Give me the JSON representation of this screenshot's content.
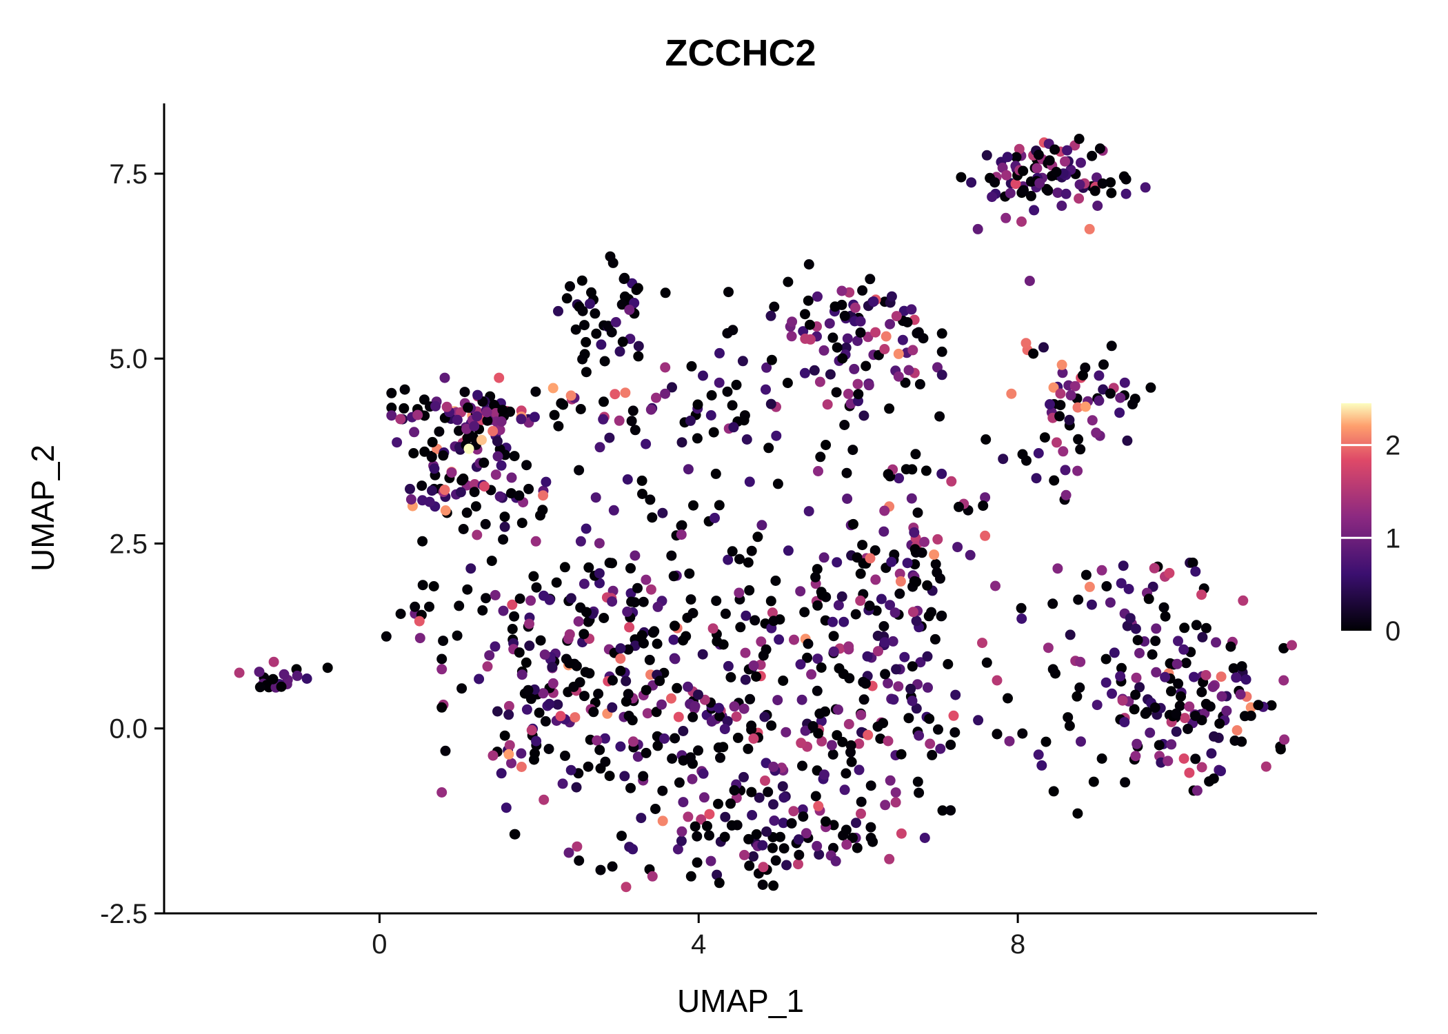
{
  "title": "ZCCHC2",
  "chart_data": {
    "type": "scatter",
    "title": "ZCCHC2",
    "xlabel": "UMAP_1",
    "ylabel": "UMAP_2",
    "xlim": [
      -2.7,
      11.75
    ],
    "ylim": [
      -2.5,
      8.45
    ],
    "xticks": [
      0,
      4,
      8
    ],
    "xtick_labels": [
      "0",
      "4",
      "8"
    ],
    "yticks": [
      -2.5,
      0.0,
      2.5,
      5.0,
      7.5
    ],
    "ytick_labels": [
      "-2.5",
      "0.0",
      "2.5",
      "5.0",
      "7.5"
    ],
    "grid": false,
    "legend": {
      "position": "right",
      "ticks": [
        0,
        1,
        2
      ],
      "tick_labels": [
        "0",
        "1",
        "2"
      ],
      "vmax": 2.45
    },
    "colorscale": {
      "name": "magma",
      "stops": [
        [
          0,
          "#000004"
        ],
        [
          0.25,
          "#3B0F70"
        ],
        [
          0.5,
          "#8C2981"
        ],
        [
          0.75,
          "#DE4968"
        ],
        [
          0.9,
          "#FE9F6D"
        ],
        [
          1,
          "#FCFDBF"
        ]
      ]
    },
    "point_radius_px": 7.5,
    "seed": 7,
    "value_buckets": [
      [
        0,
        0.04
      ],
      [
        0.35,
        0.9
      ],
      [
        0.9,
        1.6
      ],
      [
        1.6,
        2.2
      ],
      [
        2.2,
        2.45
      ]
    ],
    "clusters": [
      {
        "name": "left-isolate",
        "cx": -1.35,
        "cy": 0.68,
        "sx": 0.2,
        "sy": 0.1,
        "n": 18,
        "mix": [
          0.45,
          0.35,
          0.2,
          0,
          0
        ]
      },
      {
        "name": "upperleft-arc",
        "cx": 1.25,
        "cy": 4.3,
        "sx": 0.5,
        "sy": 0.2,
        "n": 70,
        "mix": [
          0.33,
          0.3,
          0.27,
          0.08,
          0.02
        ]
      },
      {
        "name": "upperleft-west",
        "cx": 0.85,
        "cy": 3.5,
        "sx": 0.3,
        "sy": 0.45,
        "n": 55,
        "mix": [
          0.4,
          0.28,
          0.24,
          0.08,
          0
        ]
      },
      {
        "name": "upperleft-core",
        "cx": 1.6,
        "cy": 3.3,
        "sx": 0.45,
        "sy": 0.4,
        "n": 35,
        "mix": [
          0.48,
          0.3,
          0.2,
          0.02,
          0
        ]
      },
      {
        "name": "band-mid",
        "cx": 3.1,
        "cy": 4.3,
        "sx": 0.85,
        "sy": 0.22,
        "n": 32,
        "mix": [
          0.42,
          0.3,
          0.22,
          0.06,
          0
        ]
      },
      {
        "name": "topmid",
        "cx": 2.88,
        "cy": 5.72,
        "sx": 0.32,
        "sy": 0.3,
        "n": 40,
        "mix": [
          0.6,
          0.28,
          0.12,
          0,
          0
        ]
      },
      {
        "name": "topmid-sparse",
        "cx": 3.2,
        "cy": 5.0,
        "sx": 0.7,
        "sy": 0.12,
        "n": 6,
        "mix": [
          0.85,
          0.15,
          0,
          0,
          0
        ]
      },
      {
        "name": "top-center-sparse",
        "cx": 4.6,
        "cy": 5.25,
        "sx": 0.45,
        "sy": 0.3,
        "n": 6,
        "mix": [
          0.7,
          0.3,
          0,
          0,
          0
        ]
      },
      {
        "name": "small-mid",
        "cx": 4.45,
        "cy": 4.3,
        "sx": 0.25,
        "sy": 0.18,
        "n": 12,
        "mix": [
          0.4,
          0.3,
          0.3,
          0,
          0
        ]
      },
      {
        "name": "midright-dense",
        "cx": 5.95,
        "cy": 5.35,
        "sx": 0.5,
        "sy": 0.42,
        "n": 85,
        "mix": [
          0.35,
          0.32,
          0.28,
          0.05,
          0
        ]
      },
      {
        "name": "mid-band-sparse",
        "cx": 6.0,
        "cy": 3.9,
        "sx": 1.1,
        "sy": 0.55,
        "n": 45,
        "mix": [
          0.55,
          0.25,
          0.2,
          0,
          0
        ]
      },
      {
        "name": "topright",
        "cx": 8.5,
        "cy": 7.55,
        "sx": 0.5,
        "sy": 0.22,
        "n": 75,
        "mix": [
          0.4,
          0.3,
          0.22,
          0.08,
          0
        ]
      },
      {
        "name": "topright-lower",
        "cx": 7.95,
        "cy": 7.3,
        "sx": 0.3,
        "sy": 0.22,
        "n": 14,
        "mix": [
          0.5,
          0.3,
          0.2,
          0,
          0
        ]
      },
      {
        "name": "rightmid",
        "cx": 8.8,
        "cy": 4.55,
        "sx": 0.4,
        "sy": 0.3,
        "n": 45,
        "mix": [
          0.38,
          0.28,
          0.26,
          0.08,
          0
        ]
      },
      {
        "name": "rightmid-lower",
        "cx": 8.5,
        "cy": 3.7,
        "sx": 0.2,
        "sy": 0.3,
        "n": 14,
        "mix": [
          0.45,
          0.3,
          0.25,
          0,
          0
        ]
      },
      {
        "name": "blob-left",
        "cx": 2.1,
        "cy": 0.55,
        "sx": 0.6,
        "sy": 0.9,
        "n": 110,
        "mix": [
          0.42,
          0.3,
          0.23,
          0.05,
          0
        ]
      },
      {
        "name": "blob-midleft",
        "cx": 3.6,
        "cy": 0.3,
        "sx": 0.8,
        "sy": 0.9,
        "n": 115,
        "mix": [
          0.5,
          0.27,
          0.2,
          0.03,
          0
        ]
      },
      {
        "name": "blob-mid",
        "cx": 5.0,
        "cy": 0.2,
        "sx": 0.8,
        "sy": 1.0,
        "n": 125,
        "mix": [
          0.5,
          0.27,
          0.2,
          0.03,
          0
        ]
      },
      {
        "name": "blob-right",
        "cx": 6.2,
        "cy": 0.5,
        "sx": 0.7,
        "sy": 0.9,
        "n": 100,
        "mix": [
          0.48,
          0.27,
          0.22,
          0.03,
          0
        ]
      },
      {
        "name": "blob-bottom",
        "cx": 4.7,
        "cy": -1.5,
        "sx": 1.0,
        "sy": 0.35,
        "n": 65,
        "mix": [
          0.5,
          0.28,
          0.19,
          0.03,
          0
        ]
      },
      {
        "name": "blob-topright",
        "cx": 5.9,
        "cy": 1.9,
        "sx": 0.8,
        "sy": 0.5,
        "n": 60,
        "mix": [
          0.45,
          0.3,
          0.22,
          0.03,
          0
        ]
      },
      {
        "name": "blob-ne",
        "cx": 6.6,
        "cy": 2.35,
        "sx": 0.45,
        "sy": 0.45,
        "n": 30,
        "mix": [
          0.5,
          0.25,
          0.2,
          0.05,
          0
        ]
      },
      {
        "name": "blob-topleft",
        "cx": 2.9,
        "cy": 1.6,
        "sx": 0.6,
        "sy": 0.5,
        "n": 40,
        "mix": [
          0.45,
          0.3,
          0.22,
          0.03,
          0
        ]
      },
      {
        "name": "blob-upper-conn",
        "cx": 3.6,
        "cy": 2.9,
        "sx": 0.8,
        "sy": 0.45,
        "n": 25,
        "mix": [
          0.55,
          0.25,
          0.2,
          0,
          0
        ]
      },
      {
        "name": "left-edge-small",
        "cx": 0.45,
        "cy": 1.45,
        "sx": 0.18,
        "sy": 0.15,
        "n": 8,
        "mix": [
          0.55,
          0.25,
          0.2,
          0,
          0
        ]
      },
      {
        "name": "left-mini",
        "cx": 1.1,
        "cy": 2.0,
        "sx": 0.3,
        "sy": 0.28,
        "n": 10,
        "mix": [
          0.5,
          0.3,
          0.2,
          0,
          0
        ]
      },
      {
        "name": "gap-sparse",
        "cx": 7.8,
        "cy": 0.3,
        "sx": 0.45,
        "sy": 0.8,
        "n": 14,
        "mix": [
          0.55,
          0.25,
          0.2,
          0,
          0
        ]
      },
      {
        "name": "right-main",
        "cx": 9.8,
        "cy": 0.7,
        "sx": 0.7,
        "sy": 0.7,
        "n": 120,
        "mix": [
          0.42,
          0.28,
          0.24,
          0.06,
          0
        ]
      },
      {
        "name": "right-se",
        "cx": 10.4,
        "cy": 0.1,
        "sx": 0.5,
        "sy": 0.5,
        "n": 40,
        "mix": [
          0.45,
          0.27,
          0.22,
          0.06,
          0
        ]
      },
      {
        "name": "right-top",
        "cx": 9.6,
        "cy": 1.9,
        "sx": 0.5,
        "sy": 0.25,
        "n": 14,
        "mix": [
          0.5,
          0.25,
          0.2,
          0.05,
          0
        ]
      }
    ],
    "extra_points": [
      [
        -0.65,
        0.82,
        0
      ],
      [
        1.12,
        3.78,
        2.45
      ],
      [
        1.28,
        3.9,
        2.3
      ],
      [
        1.42,
        4.02,
        2.0
      ],
      [
        2.05,
        3.15,
        2.0
      ],
      [
        2.4,
        4.5,
        2.1
      ],
      [
        2.95,
        4.52,
        1.9
      ],
      [
        6.35,
        5.3,
        2.05
      ],
      [
        6.95,
        2.35,
        2.15
      ],
      [
        7.5,
        6.75,
        0.9
      ],
      [
        7.85,
        6.9,
        1.2
      ],
      [
        8.15,
        6.05,
        1.0
      ],
      [
        8.9,
        6.75,
        2.05
      ],
      [
        8.85,
        4.35,
        2.2
      ],
      [
        0.5,
        1.45,
        1.9
      ],
      [
        1.62,
        -0.35,
        2.2
      ],
      [
        1.78,
        -0.52,
        2.0
      ],
      [
        2.45,
        0.15,
        2.0
      ],
      [
        3.55,
        -1.25,
        2.1
      ],
      [
        5.5,
        -1.05,
        1.9
      ],
      [
        6.15,
        2.3,
        2.0
      ],
      [
        9.9,
        2.1,
        1.7
      ],
      [
        10.55,
        0.7,
        2.0
      ],
      [
        10.15,
        -0.6,
        1.8
      ],
      [
        8.45,
        -0.85,
        0
      ],
      [
        8.75,
        -1.15,
        0
      ],
      [
        8.3,
        -0.5,
        0.6
      ]
    ]
  }
}
